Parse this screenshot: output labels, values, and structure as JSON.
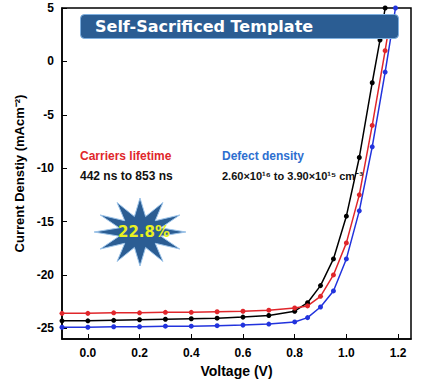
{
  "chart_data": {
    "type": "line",
    "title": "Self-Sacrificed Template",
    "x_label": "Voltage (V)",
    "y_label": "Current Denstiy (mAcm⁻²)",
    "xlim": [
      -0.1,
      1.25
    ],
    "xticks": [
      {
        "value": 0,
        "label": "0.0"
      },
      {
        "value": 0.2,
        "label": "0.2"
      },
      {
        "value": 0.4,
        "label": "0.4"
      },
      {
        "value": 0.6,
        "label": "0.6"
      },
      {
        "value": 0.8,
        "label": "0.8"
      },
      {
        "value": 1,
        "label": "1.0"
      },
      {
        "value": 1.2,
        "label": "1.2"
      }
    ],
    "ylim": [
      -26,
      5
    ],
    "yticks": [
      -25,
      -20,
      -15,
      -10,
      -5,
      0,
      5
    ],
    "grid": false,
    "marker": "circle",
    "annotations": [
      {
        "text": "Carriers lifetime",
        "color": "#e0262b"
      },
      {
        "text": "442 ns to 853 ns",
        "color": "#111111"
      },
      {
        "text": "Defect density",
        "color": "#2e6fd0"
      },
      {
        "text": "2.60×10¹⁶ to 3.90×10¹⁵ cm⁻³",
        "color": "#111111"
      },
      {
        "text": "22.8%",
        "color": "#e8f020"
      }
    ],
    "series": [
      {
        "color": "#000000",
        "x": [
          -0.1,
          0,
          0.1,
          0.2,
          0.3,
          0.4,
          0.5,
          0.6,
          0.7,
          0.8,
          0.85,
          0.9,
          0.95,
          1.0,
          1.05,
          1.1,
          1.13,
          1.15
        ],
        "values": [
          -24.3,
          -24.3,
          -24.25,
          -24.2,
          -24.15,
          -24.1,
          -24.05,
          -23.95,
          -23.8,
          -23.4,
          -22.6,
          -21.0,
          -18.5,
          -14.5,
          -9.0,
          -2.0,
          2.0,
          5.0
        ]
      },
      {
        "color": "#e0262b",
        "x": [
          -0.1,
          0,
          0.1,
          0.2,
          0.3,
          0.4,
          0.5,
          0.6,
          0.7,
          0.8,
          0.85,
          0.9,
          0.95,
          1.0,
          1.05,
          1.1,
          1.15,
          1.17
        ],
        "values": [
          -23.6,
          -23.6,
          -23.55,
          -23.55,
          -23.5,
          -23.5,
          -23.45,
          -23.4,
          -23.3,
          -23.1,
          -22.9,
          -22.0,
          -20.0,
          -17.0,
          -12.5,
          -6.0,
          1.0,
          4.0
        ]
      },
      {
        "color": "#2233dd",
        "x": [
          -0.1,
          0,
          0.1,
          0.2,
          0.3,
          0.4,
          0.5,
          0.6,
          0.7,
          0.8,
          0.85,
          0.9,
          0.95,
          1.0,
          1.05,
          1.1,
          1.15,
          1.18,
          1.19
        ],
        "values": [
          -24.9,
          -24.9,
          -24.85,
          -24.85,
          -24.8,
          -24.8,
          -24.75,
          -24.7,
          -24.6,
          -24.4,
          -24.0,
          -23.0,
          -21.5,
          -18.5,
          -14.0,
          -8.0,
          -1.0,
          3.5,
          5.0
        ]
      }
    ]
  }
}
